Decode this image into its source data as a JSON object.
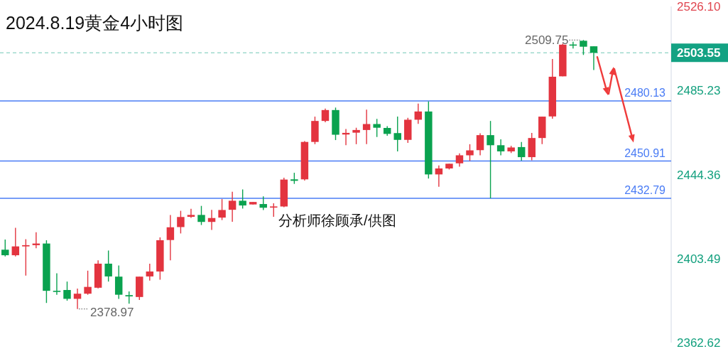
{
  "chart_data": {
    "type": "candlestick",
    "title": "2024.8.19黄金4小时图",
    "categories": [
      null,
      null,
      null,
      null,
      null,
      null,
      null,
      null,
      null,
      null,
      null,
      null,
      null,
      null,
      null,
      null,
      null,
      null,
      null,
      null,
      null,
      null,
      null,
      null,
      null,
      null,
      null,
      null,
      null,
      null,
      null,
      null,
      null,
      null,
      null,
      null,
      null,
      null,
      null,
      null,
      null,
      null,
      null,
      null,
      null,
      null,
      null,
      null,
      null,
      null,
      null,
      null,
      null,
      null,
      null,
      null,
      null,
      null,
      null,
      null,
      null,
      null,
      null,
      null,
      null
    ],
    "ohlc": [
      [
        2407.8,
        2412.7,
        2404.5,
        2405.1
      ],
      [
        2405.1,
        2418.4,
        2404.5,
        2409.4
      ],
      [
        2409.4,
        2412.9,
        2395.2,
        2410.0
      ],
      [
        2410.0,
        2416.3,
        2408.5,
        2410.8
      ],
      [
        2410.8,
        2412.4,
        2381.9,
        2387.8
      ],
      [
        2387.8,
        2396.3,
        2385.9,
        2387.3
      ],
      [
        2388.2,
        2392.3,
        2383.0,
        2383.9
      ],
      [
        2383.9,
        2388.9,
        2378.97,
        2386.4
      ],
      [
        2386.4,
        2397.6,
        2385.9,
        2389.7
      ],
      [
        2389.3,
        2402.6,
        2389.0,
        2401.0
      ],
      [
        2401.0,
        2407.4,
        2392.3,
        2394.8
      ],
      [
        2394.7,
        2400.1,
        2383.9,
        2385.9
      ],
      [
        2385.7,
        2387.5,
        2381.5,
        2385.1
      ],
      [
        2384.8,
        2394.7,
        2383.4,
        2394.7
      ],
      [
        2394.8,
        2401.0,
        2392.8,
        2397.2
      ],
      [
        2397.2,
        2413.8,
        2393.2,
        2412.4
      ],
      [
        2412.5,
        2424.7,
        2402.6,
        2418.7
      ],
      [
        2418.8,
        2426.7,
        2415.7,
        2423.7
      ],
      [
        2423.8,
        2427.7,
        2423.3,
        2424.7
      ],
      [
        2424.7,
        2429.1,
        2419.8,
        2421.3
      ],
      [
        2421.3,
        2427.2,
        2417.4,
        2423.2
      ],
      [
        2423.4,
        2432.4,
        2422.2,
        2427.1
      ],
      [
        2427.2,
        2436.0,
        2421.4,
        2431.6
      ],
      [
        2431.6,
        2437.1,
        2427.8,
        2429.3
      ],
      [
        2429.8,
        2431.0,
        2429.8,
        2431.0
      ],
      [
        2430.0,
        2433.7,
        2427.1,
        2428.2
      ],
      [
        2428.3,
        2430.4,
        2423.8,
        2428.8
      ],
      [
        2428.8,
        2442.8,
        2428.5,
        2441.9
      ],
      [
        2442.0,
        2445.2,
        2439.8,
        2441.3
      ],
      [
        2442.0,
        2460.6,
        2441.4,
        2460.2
      ],
      [
        2460.2,
        2472.5,
        2459.1,
        2470.4
      ],
      [
        2470.4,
        2476.4,
        2469.8,
        2475.7
      ],
      [
        2475.7,
        2476.9,
        2461.1,
        2463.7
      ],
      [
        2463.8,
        2466.5,
        2458.6,
        2464.6
      ],
      [
        2464.7,
        2467.1,
        2459.1,
        2466.0
      ],
      [
        2466.0,
        2475.9,
        2459.1,
        2468.9
      ],
      [
        2468.9,
        2471.4,
        2462.6,
        2467.1
      ],
      [
        2467.0,
        2467.9,
        2463.2,
        2464.1
      ],
      [
        2464.5,
        2472.5,
        2455.6,
        2461.2
      ],
      [
        2461.2,
        2471.9,
        2459.7,
        2471.0
      ],
      [
        2471.0,
        2478.8,
        2469.0,
        2475.0
      ],
      [
        2475.0,
        2479.9,
        2442.4,
        2444.4
      ],
      [
        2444.4,
        2448.8,
        2438.4,
        2447.3
      ],
      [
        2447.3,
        2449.6,
        2446.8,
        2449.6
      ],
      [
        2449.8,
        2454.6,
        2448.2,
        2453.7
      ],
      [
        2453.7,
        2459.1,
        2451.0,
        2456.1
      ],
      [
        2456.2,
        2464.4,
        2453.7,
        2463.5
      ],
      [
        2463.5,
        2470.4,
        2432.79,
        2458.6
      ],
      [
        2458.6,
        2461.5,
        2453.7,
        2455.6
      ],
      [
        2455.6,
        2458.3,
        2454.8,
        2457.5
      ],
      [
        2457.7,
        2460.2,
        2451.1,
        2452.8
      ],
      [
        2452.8,
        2464.6,
        2451.3,
        2462.1
      ],
      [
        2462.1,
        2472.5,
        2459.1,
        2472.5
      ],
      [
        2472.6,
        2500.5,
        2471.5,
        2491.9
      ],
      [
        2492.1,
        2508.0,
        2492.1,
        2507.5
      ],
      [
        2507.5,
        2508.9,
        2505.6,
        2507.1
      ],
      [
        2509.4,
        2509.75,
        2502.5,
        2506.5
      ],
      [
        2506.7,
        2506.7,
        2495.2,
        2503.55
      ],
      null,
      null,
      null,
      null,
      null,
      null,
      null
    ],
    "colors": [
      "#0aa24f",
      "#e3343f",
      "#e3343f",
      "#e3343f",
      "#0aa24f",
      "#0aa24f",
      "#0aa24f",
      "#e3343f",
      "#e3343f",
      "#e3343f",
      "#0aa24f",
      "#0aa24f",
      "#0aa24f",
      "#e3343f",
      "#e3343f",
      "#e3343f",
      "#e3343f",
      "#e3343f",
      "#e3343f",
      "#0aa24f",
      "#e3343f",
      "#e3343f",
      "#e3343f",
      "#0aa24f",
      "#e3343f",
      "#0aa24f",
      "#e3343f",
      "#e3343f",
      "#0aa24f",
      "#e3343f",
      "#e3343f",
      "#e3343f",
      "#0aa24f",
      "#e3343f",
      "#e3343f",
      "#e3343f",
      "#0aa24f",
      "#0aa24f",
      "#0aa24f",
      "#e3343f",
      "#e3343f",
      "#0aa24f",
      "#e3343f",
      "#e3343f",
      "#e3343f",
      "#e3343f",
      "#e3343f",
      "#0aa24f",
      "#0aa24f",
      "#e3343f",
      "#0aa24f",
      "#e3343f",
      "#e3343f",
      "#e3343f",
      "#e3343f",
      "#0aa24f",
      "#0aa24f",
      "#0aa24f",
      null,
      null,
      null,
      null,
      null,
      null,
      null
    ],
    "ylim": [
      2362.62,
      2526.1
    ],
    "yticks": [
      2362.62,
      2403.49,
      2444.36,
      2485.23,
      {
        "value": 2526.1,
        "label": "2526.10"
      }
    ],
    "tick_labels": "y",
    "ref_lines": [
      {
        "axis": "y",
        "value": 2480.13,
        "label": "2480.13",
        "color": "#4a7cf5"
      },
      {
        "axis": "y",
        "value": 2450.91,
        "label": "2450.91",
        "color": "#4a7cf5"
      },
      {
        "axis": "y",
        "value": 2432.79,
        "label": "2432.79",
        "color": "#4a7cf5"
      },
      {
        "axis": "y",
        "value": 2503.55,
        "label": "2503.55",
        "color": "#13a283",
        "line_style": "dashed"
      }
    ],
    "annotations": [
      "2509.75",
      "2378.97",
      "分析师徐顾承/供图"
    ]
  }
}
